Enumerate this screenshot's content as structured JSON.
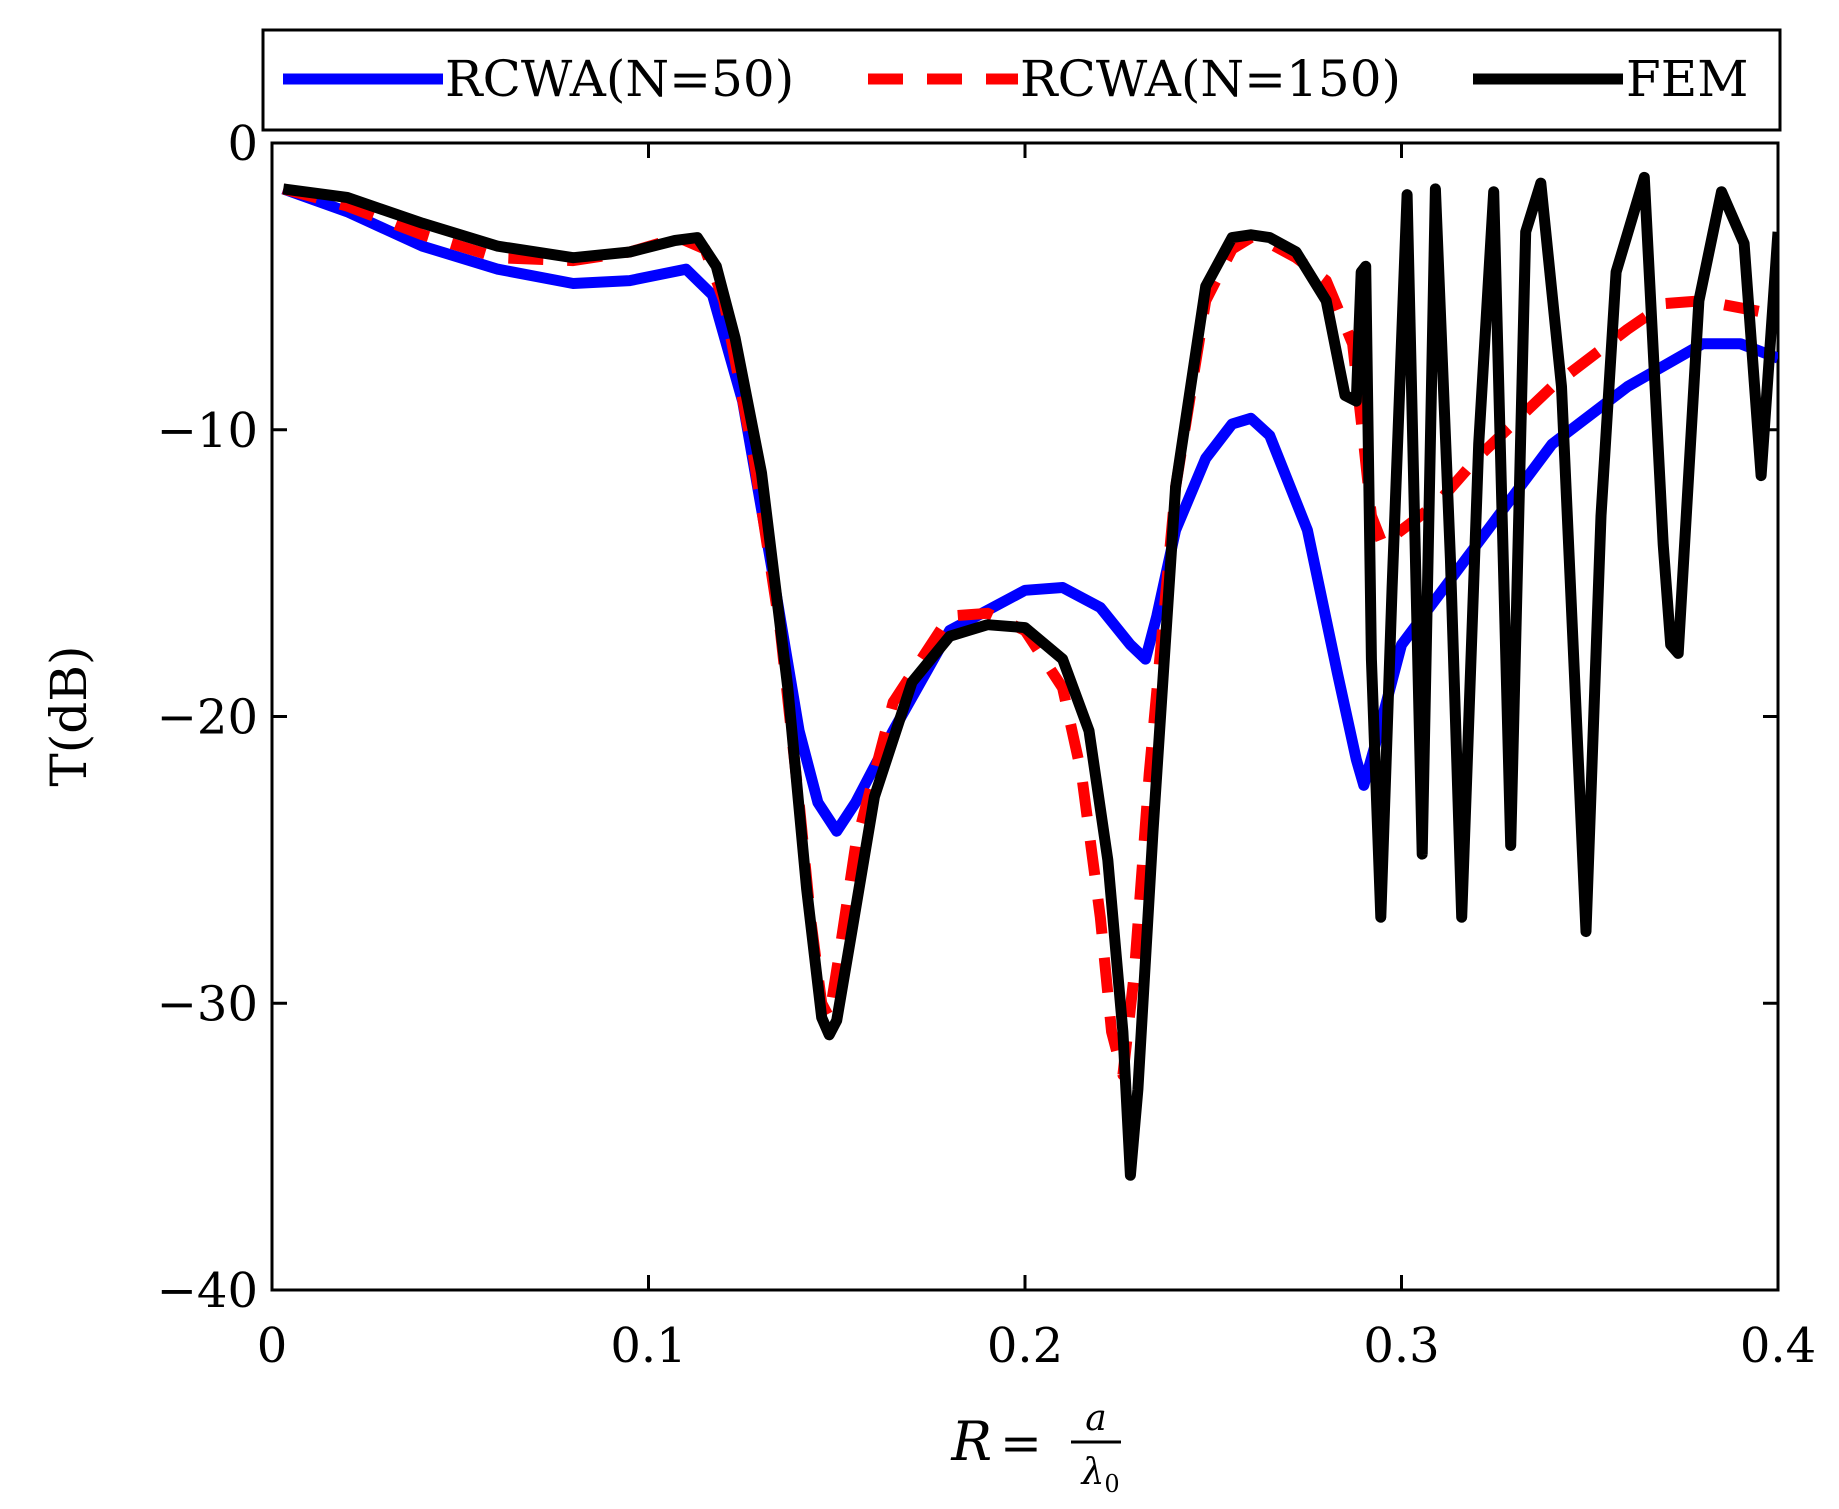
{
  "chart_data": {
    "type": "line",
    "title": "",
    "xlabel": {
      "lhs": "R",
      "eq": "=",
      "num": "a",
      "den": "λ",
      "den_sub": "0"
    },
    "ylabel": "T(dB)",
    "xlim": [
      0,
      0.4
    ],
    "ylim": [
      -40,
      0
    ],
    "xticks": [
      0,
      0.1,
      0.2,
      0.3,
      0.4
    ],
    "xtick_labels": [
      "0",
      "0.1",
      "0.2",
      "0.3",
      "0.4"
    ],
    "yticks": [
      0,
      -10,
      -20,
      -30,
      -40
    ],
    "ytick_labels": [
      "0",
      "−10",
      "−20",
      "−30",
      "−40"
    ],
    "grid": false,
    "legend_position": "top, outside",
    "series": [
      {
        "name": "RCWA(N=50)",
        "color": "#0000ff",
        "style": "solid",
        "x": [
          0.003,
          0.02,
          0.04,
          0.06,
          0.08,
          0.095,
          0.11,
          0.117,
          0.125,
          0.133,
          0.14,
          0.145,
          0.15,
          0.155,
          0.165,
          0.18,
          0.2,
          0.21,
          0.22,
          0.228,
          0.232,
          0.235,
          0.24,
          0.248,
          0.255,
          0.26,
          0.265,
          0.275,
          0.283,
          0.288,
          0.29,
          0.293,
          0.3,
          0.32,
          0.34,
          0.36,
          0.38,
          0.39,
          0.4
        ],
        "y": [
          -1.6,
          -2.4,
          -3.6,
          -4.4,
          -4.9,
          -4.8,
          -4.4,
          -5.3,
          -9,
          -15,
          -20.5,
          -23,
          -24,
          -23,
          -20.5,
          -17,
          -15.6,
          -15.5,
          -16.2,
          -17.5,
          -18,
          -16.5,
          -13.5,
          -11,
          -9.8,
          -9.6,
          -10.2,
          -13.5,
          -18.5,
          -21.5,
          -22.4,
          -21,
          -17.5,
          -14,
          -10.5,
          -8.5,
          -7,
          -7,
          -7.5
        ]
      },
      {
        "name": "RCWA(N=150)",
        "color": "#ff0000",
        "style": "dashed",
        "x": [
          0.003,
          0.02,
          0.04,
          0.06,
          0.08,
          0.095,
          0.108,
          0.115,
          0.12,
          0.128,
          0.135,
          0.14,
          0.143,
          0.146,
          0.148,
          0.151,
          0.155,
          0.165,
          0.18,
          0.19,
          0.2,
          0.21,
          0.215,
          0.22,
          0.223,
          0.226,
          0.229,
          0.233,
          0.24,
          0.248,
          0.255,
          0.26,
          0.265,
          0.272,
          0.28,
          0.287,
          0.29,
          0.292,
          0.295,
          0.3,
          0.31,
          0.32,
          0.34,
          0.36,
          0.37,
          0.38,
          0.4
        ],
        "y": [
          -1.6,
          -2.2,
          -3.2,
          -4,
          -4.1,
          -3.8,
          -3.3,
          -3.7,
          -5.5,
          -11,
          -17,
          -23,
          -27,
          -30,
          -30.5,
          -28,
          -24.5,
          -19.5,
          -16.5,
          -16.4,
          -17,
          -19,
          -22,
          -27,
          -31,
          -32.5,
          -29,
          -22,
          -12,
          -5.5,
          -3.7,
          -3.3,
          -3.5,
          -4,
          -4.8,
          -7,
          -10.5,
          -13,
          -14,
          -13.5,
          -12.5,
          -11,
          -8.5,
          -6.5,
          -5.6,
          -5.5,
          -6
        ]
      },
      {
        "name": "FEM",
        "color": "#000000",
        "style": "solid",
        "x": [
          0.003,
          0.02,
          0.04,
          0.06,
          0.08,
          0.095,
          0.107,
          0.113,
          0.118,
          0.123,
          0.13,
          0.137,
          0.142,
          0.146,
          0.148,
          0.15,
          0.154,
          0.16,
          0.17,
          0.18,
          0.19,
          0.2,
          0.21,
          0.217,
          0.222,
          0.226,
          0.228,
          0.23,
          0.234,
          0.24,
          0.248,
          0.255,
          0.26,
          0.265,
          0.272,
          0.28,
          0.285,
          0.288,
          0.2893,
          0.2905,
          0.292,
          0.2945,
          0.2975,
          0.3015,
          0.3055,
          0.309,
          0.313,
          0.316,
          0.3205,
          0.3245,
          0.329,
          0.333,
          0.337,
          0.3425,
          0.349,
          0.353,
          0.357,
          0.3645,
          0.3695,
          0.3715,
          0.3735,
          0.379,
          0.385,
          0.391,
          0.3955,
          0.4
        ],
        "y": [
          -1.6,
          -1.9,
          -2.8,
          -3.6,
          -4,
          -3.8,
          -3.4,
          -3.3,
          -4.3,
          -6.8,
          -11.5,
          -19,
          -26,
          -30.5,
          -31.1,
          -30.6,
          -27.5,
          -22.8,
          -18.8,
          -17.2,
          -16.8,
          -16.9,
          -18,
          -20.5,
          -25,
          -31,
          -36,
          -33,
          -24,
          -12,
          -5,
          -3.3,
          -3.2,
          -3.3,
          -3.8,
          -5.5,
          -8.8,
          -9,
          -4.5,
          -4.3,
          -18,
          -27,
          -15.5,
          -1.8,
          -24.8,
          -1.6,
          -14.5,
          -27,
          -10.5,
          -1.7,
          -24.5,
          -3.1,
          -1.4,
          -8.5,
          -27.5,
          -13,
          -4.5,
          -1.2,
          -14,
          -17.5,
          -17.8,
          -5.5,
          -1.7,
          -3.5,
          -11.6,
          -3.1
        ]
      }
    ]
  }
}
